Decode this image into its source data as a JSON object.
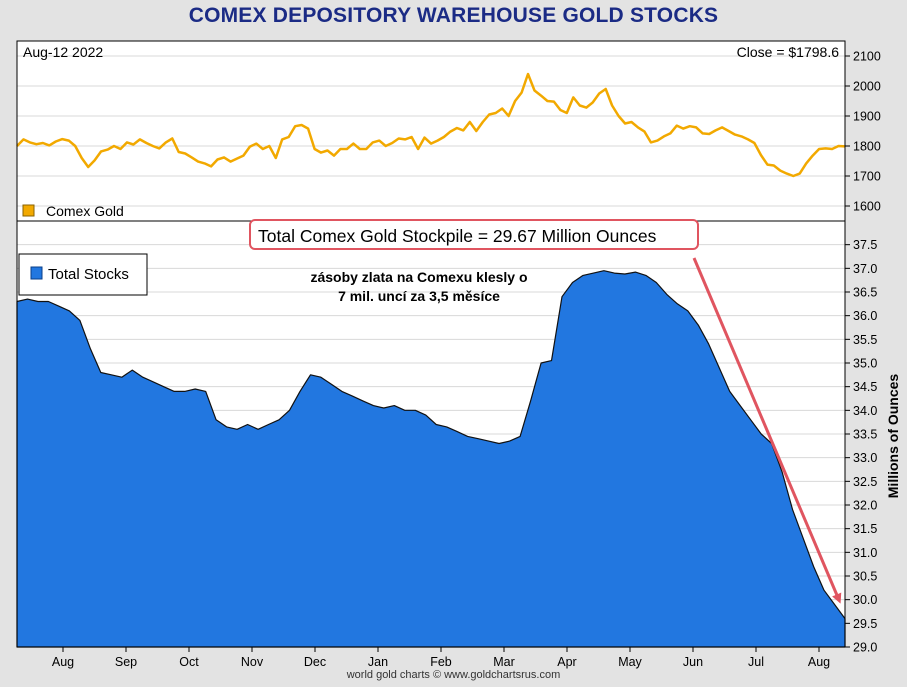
{
  "chart_data": {
    "type": "line",
    "title": "COMEX DEPOSITORY WAREHOUSE GOLD STOCKS",
    "credit": "world gold charts © www.goldchartsrus.com",
    "x_ticks": [
      "Aug",
      "Sep",
      "Oct",
      "Nov",
      "Dec",
      "Jan",
      "Feb",
      "Mar",
      "Apr",
      "May",
      "Jun",
      "Jul",
      "Aug"
    ],
    "panels": [
      {
        "id": "price",
        "date_label": "Aug-12  2022",
        "close_label": "Close = $1798.6",
        "legend": "Comex Gold",
        "color": "#f2a900",
        "ylim": [
          1550,
          2150
        ],
        "yticks": [
          "1600",
          "1700",
          "1800",
          "1900",
          "2000",
          "2100"
        ],
        "series": [
          {
            "name": "Comex Gold",
            "type": "line",
            "values": [
              1800,
              1822,
              1812,
              1806,
              1810,
              1802,
              1815,
              1823,
              1818,
              1800,
              1760,
              1730,
              1752,
              1782,
              1788,
              1800,
              1790,
              1812,
              1805,
              1822,
              1810,
              1800,
              1792,
              1812,
              1825,
              1780,
              1775,
              1762,
              1748,
              1742,
              1732,
              1755,
              1762,
              1748,
              1758,
              1768,
              1798,
              1808,
              1790,
              1800,
              1760,
              1822,
              1830,
              1866,
              1870,
              1858,
              1790,
              1778,
              1785,
              1768,
              1790,
              1790,
              1808,
              1790,
              1790,
              1812,
              1818,
              1800,
              1810,
              1825,
              1822,
              1830,
              1790,
              1828,
              1808,
              1818,
              1830,
              1848,
              1860,
              1852,
              1880,
              1850,
              1880,
              1905,
              1910,
              1925,
              1900,
              1950,
              1978,
              2040,
              1985,
              1968,
              1950,
              1948,
              1920,
              1910,
              1962,
              1935,
              1928,
              1945,
              1975,
              1990,
              1935,
              1900,
              1875,
              1880,
              1862,
              1848,
              1812,
              1818,
              1832,
              1842,
              1868,
              1858,
              1866,
              1862,
              1842,
              1840,
              1852,
              1862,
              1850,
              1838,
              1832,
              1822,
              1810,
              1770,
              1738,
              1735,
              1718,
              1708,
              1700,
              1708,
              1742,
              1768,
              1790,
              1792,
              1790,
              1800,
              1798.6
            ]
          }
        ]
      },
      {
        "id": "stocks",
        "legend": "Total Stocks",
        "color": "#2277e0",
        "ylim": [
          29.0,
          38.0
        ],
        "yticks": [
          "29.0",
          "29.5",
          "30.0",
          "30.5",
          "31.0",
          "31.5",
          "32.0",
          "32.5",
          "33.0",
          "33.5",
          "34.0",
          "34.5",
          "35.0",
          "35.5",
          "36.0",
          "36.5",
          "37.0",
          "37.5"
        ],
        "ylabel": "Millions of Ounces",
        "series": [
          {
            "name": "Total Stocks",
            "type": "area",
            "values": [
              36.3,
              36.35,
              36.3,
              36.3,
              36.2,
              36.1,
              35.9,
              35.3,
              34.8,
              34.75,
              34.7,
              34.85,
              34.7,
              34.6,
              34.5,
              34.4,
              34.4,
              34.45,
              34.4,
              33.8,
              33.65,
              33.6,
              33.7,
              33.6,
              33.7,
              33.8,
              34.0,
              34.4,
              34.75,
              34.7,
              34.55,
              34.4,
              34.3,
              34.2,
              34.1,
              34.05,
              34.1,
              34.0,
              34.0,
              33.9,
              33.7,
              33.65,
              33.55,
              33.45,
              33.4,
              33.35,
              33.3,
              33.35,
              33.45,
              34.2,
              35.0,
              35.05,
              36.4,
              36.7,
              36.85,
              36.9,
              36.95,
              36.9,
              36.88,
              36.92,
              36.85,
              36.7,
              36.45,
              36.25,
              36.1,
              35.8,
              35.4,
              34.9,
              34.4,
              34.1,
              33.8,
              33.5,
              33.3,
              32.7,
              31.9,
              31.3,
              30.7,
              30.2,
              29.9,
              29.6
            ]
          }
        ],
        "annotation_box": "Total Comex Gold Stockpile = 29.67 Million Ounces",
        "note_lines": [
          "zásoby zlata na Comexu klesly o",
          "7 mil. uncí za 3,5 měsíce"
        ]
      }
    ]
  }
}
